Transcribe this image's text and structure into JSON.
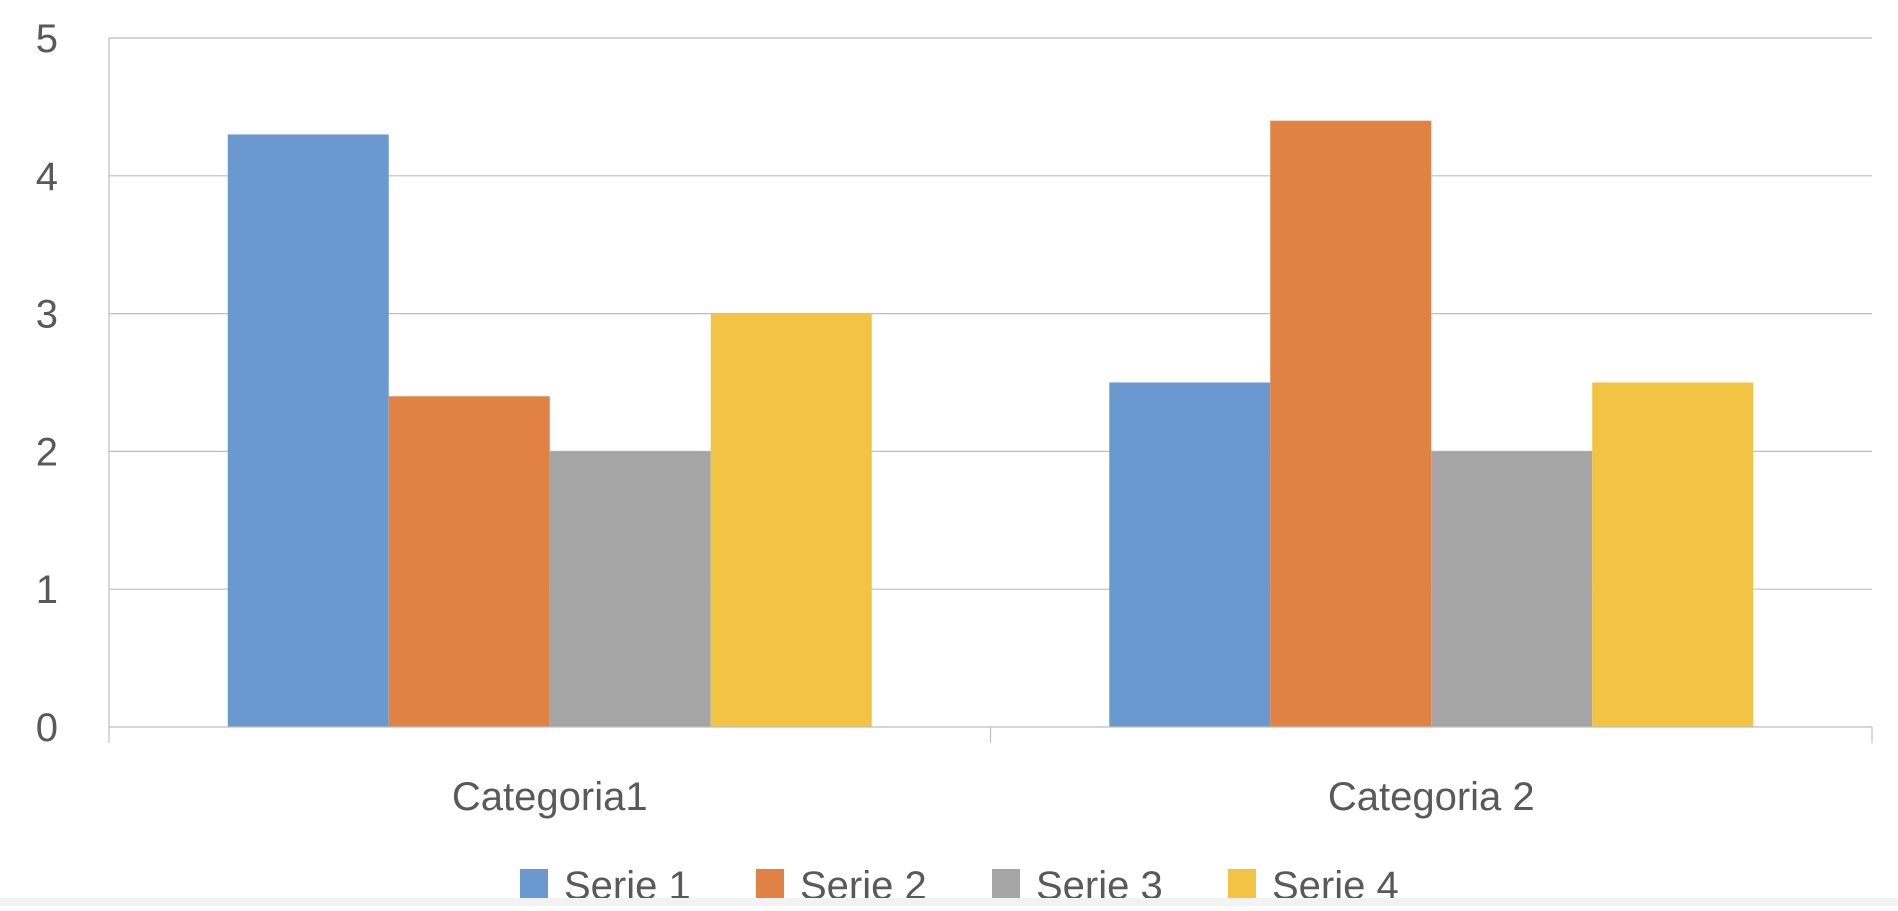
{
  "chart_data": {
    "type": "bar",
    "title": "",
    "xlabel": "",
    "ylabel": "",
    "categories": [
      "Categoria1",
      "Categoria 2"
    ],
    "series": [
      {
        "name": "Serie 1",
        "values": [
          4.3,
          2.5
        ],
        "color": "#6a99cf"
      },
      {
        "name": "Serie 2",
        "values": [
          2.4,
          4.4
        ],
        "color": "#df8244"
      },
      {
        "name": "Serie 3",
        "values": [
          2.0,
          2.0
        ],
        "color": "#a5a5a5"
      },
      {
        "name": "Serie 4",
        "values": [
          3.0,
          2.5
        ],
        "color": "#f3c343"
      }
    ],
    "ylim": [
      0,
      5
    ],
    "yticks": [
      "0",
      "1",
      "2",
      "3",
      "4",
      "5"
    ],
    "grid": true,
    "legend_position": "bottom"
  }
}
